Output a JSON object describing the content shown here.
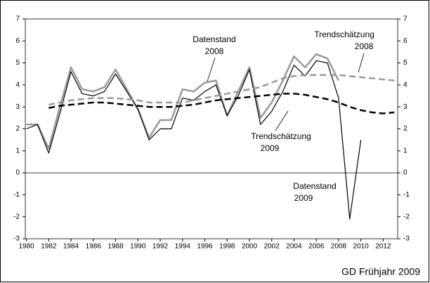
{
  "chart_data": {
    "type": "line",
    "x": [
      1980,
      1981,
      1982,
      1983,
      1984,
      1985,
      1986,
      1987,
      1988,
      1989,
      1990,
      1991,
      1992,
      1993,
      1994,
      1995,
      1996,
      1997,
      1998,
      1999,
      2000,
      2001,
      2002,
      2003,
      2004,
      2005,
      2006,
      2007,
      2008,
      2009,
      2010,
      2011,
      2012,
      2013
    ],
    "series": [
      {
        "name": "Datenstand 2008",
        "color": "#999999",
        "style": "solid",
        "width": 2.5,
        "values": [
          2.2,
          2.2,
          1.1,
          3.0,
          4.8,
          3.8,
          3.7,
          3.9,
          4.7,
          3.8,
          2.9,
          1.6,
          2.4,
          2.4,
          3.8,
          3.7,
          4.1,
          4.2,
          2.6,
          3.7,
          4.8,
          2.5,
          3.2,
          4.2,
          5.3,
          4.8,
          5.4,
          5.2,
          4.2,
          null,
          null,
          null,
          null,
          null
        ]
      },
      {
        "name": "Datenstand 2009",
        "color": "#000000",
        "style": "solid",
        "width": 1.2,
        "values": [
          2.0,
          2.2,
          0.9,
          2.7,
          4.6,
          3.6,
          3.5,
          3.7,
          4.5,
          3.7,
          2.9,
          1.5,
          2.0,
          2.0,
          3.4,
          3.3,
          3.7,
          4.0,
          2.6,
          3.5,
          4.7,
          2.2,
          2.8,
          3.7,
          4.9,
          4.4,
          5.1,
          5.0,
          3.4,
          -2.1,
          1.5,
          null,
          null,
          null
        ]
      },
      {
        "name": "Trendschätzung 2008",
        "color": "#999999",
        "style": "dashed",
        "width": 2.5,
        "values": [
          null,
          null,
          3.1,
          3.2,
          3.3,
          3.35,
          3.4,
          3.4,
          3.4,
          3.35,
          3.3,
          3.2,
          3.2,
          3.2,
          3.2,
          3.3,
          3.4,
          3.5,
          3.6,
          3.7,
          3.8,
          3.9,
          4.1,
          4.3,
          4.4,
          4.45,
          4.45,
          4.45,
          4.45,
          4.4,
          4.35,
          4.3,
          4.25,
          4.2
        ]
      },
      {
        "name": "Trendschätzung 2009",
        "color": "#000000",
        "style": "dashed",
        "width": 2.5,
        "values": [
          null,
          null,
          2.95,
          3.05,
          3.1,
          3.15,
          3.2,
          3.2,
          3.15,
          3.1,
          3.05,
          3.0,
          3.0,
          3.0,
          3.05,
          3.1,
          3.2,
          3.3,
          3.35,
          3.4,
          3.45,
          3.5,
          3.55,
          3.6,
          3.6,
          3.55,
          3.45,
          3.35,
          3.2,
          3.0,
          2.85,
          2.75,
          2.7,
          2.75
        ]
      }
    ],
    "xlim": [
      1979.9,
      2013.3
    ],
    "xticks": [
      1980,
      1982,
      1984,
      1986,
      1988,
      1990,
      1992,
      1994,
      1996,
      1998,
      2000,
      2002,
      2004,
      2006,
      2008,
      2010,
      2012
    ],
    "ylim": [
      -3,
      7
    ],
    "yticks": [
      -3,
      -2,
      -1,
      0,
      1,
      2,
      3,
      4,
      5,
      6,
      7
    ],
    "y2lim": [
      -3,
      7
    ],
    "y2ticks": [
      -3,
      -2,
      -1,
      0,
      1,
      2,
      3,
      4,
      5,
      6,
      7
    ],
    "annotations": [
      [
        "Datenstand",
        "2008"
      ],
      [
        "Trendschätzung",
        "2008"
      ],
      [
        "Trendschätzung",
        "2009"
      ],
      [
        "Datenstand",
        "2009"
      ]
    ],
    "source": "GD Frühjahr 2009"
  }
}
